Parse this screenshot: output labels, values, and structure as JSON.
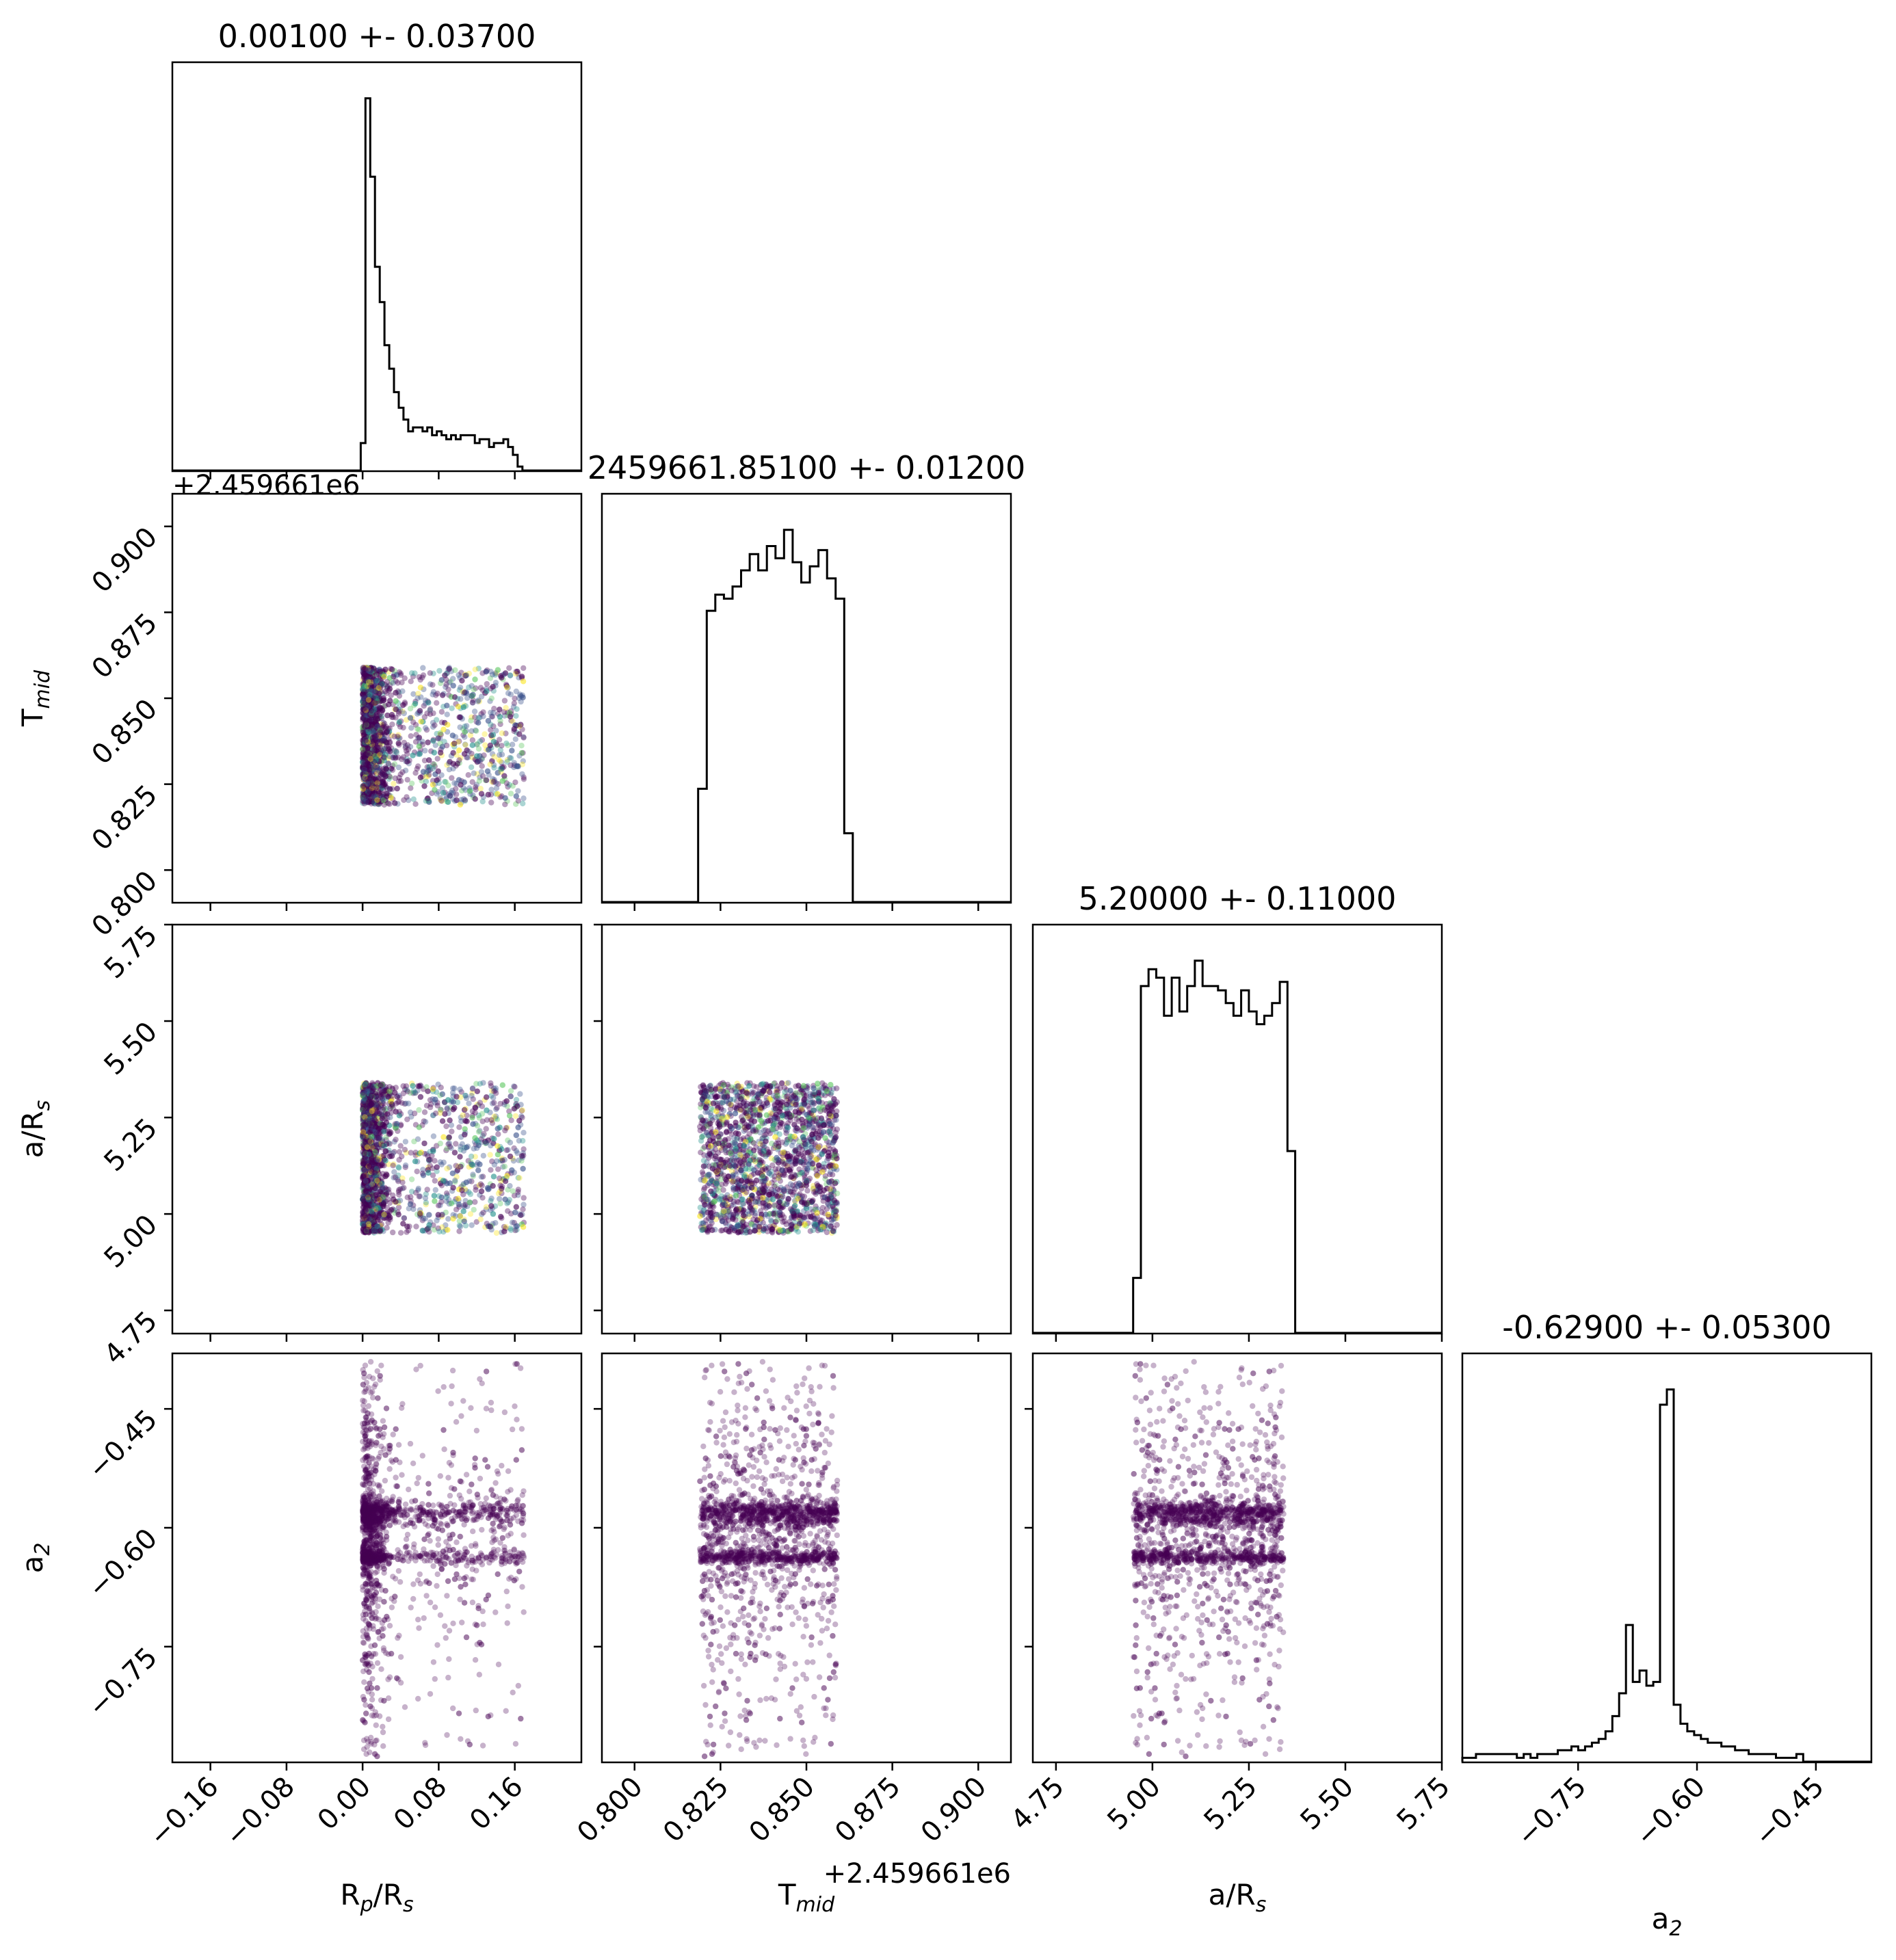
{
  "chart_data": {
    "type": "corner",
    "parameters": [
      {
        "key": "rprs",
        "xlabel": "R$_p$/R$_s$",
        "label_main": "R",
        "label_sub1": "p",
        "label_mid": "/R",
        "label_sub2": "s",
        "range": [
          -0.2,
          0.23
        ],
        "ticks": [
          -0.16,
          -0.08,
          0.0,
          0.08,
          0.16
        ],
        "tick_labels": [
          "−0.16",
          "−0.08",
          "0.00",
          "0.08",
          "0.16"
        ]
      },
      {
        "key": "tmid",
        "label_main": "T",
        "label_sub1": "mid",
        "label_mid": "",
        "label_sub2": "",
        "range": [
          0.7905,
          0.9095
        ],
        "ticks": [
          0.8,
          0.825,
          0.85,
          0.875,
          0.9
        ],
        "tick_labels": [
          "0.800",
          "0.825",
          "0.850",
          "0.875",
          "0.900"
        ],
        "offset_label": "+2.459661e6"
      },
      {
        "key": "ars",
        "label_main": "a/R",
        "label_sub1": "",
        "label_mid": "",
        "label_sub2": "s",
        "range": [
          4.69,
          5.75
        ],
        "ticks": [
          4.75,
          5.0,
          5.25,
          5.5,
          5.75
        ],
        "tick_labels": [
          "4.75",
          "5.00",
          "5.25",
          "5.50",
          "5.75"
        ]
      },
      {
        "key": "a2",
        "label_main": "a",
        "label_sub1": "",
        "label_mid": "",
        "label_sub2": "2",
        "range": [
          -0.896,
          -0.38
        ],
        "ticks": [
          -0.75,
          -0.6,
          -0.45
        ],
        "tick_labels": [
          "−0.75",
          "−0.60",
          "−0.45"
        ]
      }
    ],
    "titles": [
      "0.00100 +- 0.03700",
      "2459661.85100 +- 0.01200",
      "5.20000 +- 0.11000",
      "-0.62900 +- 0.05300"
    ],
    "histograms": {
      "rprs": {
        "bin_edges_start": -0.002,
        "bin_width": 0.005,
        "counts": [
          0.07,
          0.95,
          0.75,
          0.52,
          0.43,
          0.32,
          0.26,
          0.2,
          0.16,
          0.13,
          0.1,
          0.11,
          0.11,
          0.1,
          0.11,
          0.09,
          0.1,
          0.09,
          0.08,
          0.09,
          0.08,
          0.09,
          0.09,
          0.09,
          0.07,
          0.08,
          0.08,
          0.06,
          0.07,
          0.07,
          0.08,
          0.06,
          0.04,
          0.01
        ]
      },
      "tmid": {
        "bin_edges_start": 0.8185,
        "bin_width": 0.0025,
        "counts": [
          0.28,
          0.72,
          0.76,
          0.75,
          0.78,
          0.82,
          0.86,
          0.82,
          0.88,
          0.85,
          0.92,
          0.84,
          0.79,
          0.83,
          0.87,
          0.8,
          0.75,
          0.17
        ]
      },
      "ars": {
        "bin_edges_start": 4.95,
        "bin_width": 0.02,
        "counts": [
          0.13,
          0.82,
          0.86,
          0.84,
          0.75,
          0.84,
          0.76,
          0.82,
          0.88,
          0.82,
          0.82,
          0.81,
          0.78,
          0.75,
          0.81,
          0.76,
          0.73,
          0.75,
          0.78,
          0.83,
          0.43
        ]
      },
      "a2": {
        "bin_edges_start": -0.896,
        "bin_width": 0.0086,
        "counts": [
          0.01,
          0.01,
          0.02,
          0.02,
          0.02,
          0.02,
          0.02,
          0.02,
          0.01,
          0.02,
          0.01,
          0.02,
          0.02,
          0.02,
          0.03,
          0.03,
          0.04,
          0.03,
          0.04,
          0.05,
          0.06,
          0.08,
          0.12,
          0.18,
          0.36,
          0.21,
          0.24,
          0.2,
          0.21,
          0.94,
          0.98,
          0.15,
          0.1,
          0.08,
          0.07,
          0.06,
          0.05,
          0.05,
          0.04,
          0.04,
          0.03,
          0.03,
          0.02,
          0.02,
          0.02,
          0.02,
          0.01,
          0.01,
          0.01,
          0.02
        ]
      }
    },
    "scatter_regions": {
      "rprs": [
        0.0,
        0.17
      ],
      "tmid": [
        0.819,
        0.859
      ],
      "ars": [
        4.95,
        5.34
      ],
      "a2_uniform": [
        -0.89,
        -0.39
      ],
      "a2_core": [
        -0.645,
        -0.565
      ]
    },
    "colormap": [
      "#440154",
      "#3b528b",
      "#21918c",
      "#5ec962",
      "#fde725"
    ]
  }
}
